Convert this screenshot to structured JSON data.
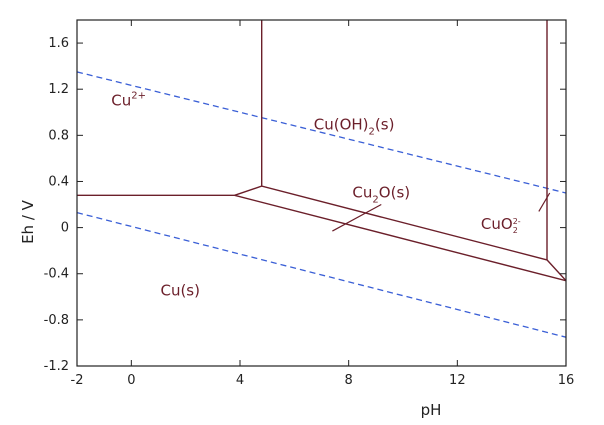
{
  "chart_data": {
    "type": "line",
    "xlabel": "pH",
    "ylabel": "Eh / V",
    "xlim": [
      -2,
      16
    ],
    "ylim": [
      -1.2,
      1.8
    ],
    "xticks": [
      -2,
      0,
      4,
      8,
      12,
      16
    ],
    "yticks": [
      -1.2,
      -0.8,
      -0.4,
      0,
      0.4,
      0.8,
      1.2,
      1.6
    ],
    "grid": false,
    "colors": {
      "boundary": "#6b1f2a",
      "water": "#3a5fd6",
      "axis": "#222222"
    },
    "series": [
      {
        "role": "water-upper-limit",
        "style": "dashed",
        "x": [
          -2,
          16
        ],
        "y": [
          1.35,
          0.3
        ]
      },
      {
        "role": "water-lower-limit",
        "style": "dashed",
        "x": [
          -2,
          16
        ],
        "y": [
          0.13,
          -0.95
        ]
      },
      {
        "role": "boundary",
        "x": [
          -2,
          3.8
        ],
        "y": [
          0.28,
          0.28
        ]
      },
      {
        "role": "boundary",
        "x": [
          3.8,
          4.8,
          15.3
        ],
        "y": [
          0.28,
          0.36,
          -0.28
        ]
      },
      {
        "role": "boundary",
        "x": [
          3.8,
          16
        ],
        "y": [
          0.28,
          -0.46
        ]
      },
      {
        "role": "boundary",
        "x": [
          4.8,
          4.8
        ],
        "y": [
          0.36,
          1.8
        ]
      },
      {
        "role": "boundary",
        "x": [
          15.3,
          15.3
        ],
        "y": [
          -0.28,
          1.8
        ]
      },
      {
        "role": "boundary",
        "x": [
          15.3,
          16
        ],
        "y": [
          -0.28,
          -0.46
        ]
      }
    ],
    "regions": [
      {
        "label": "Cu",
        "sup": "2+",
        "sub": "",
        "tail": "",
        "x": -0.1,
        "y": 1.06
      },
      {
        "label": "Cu(OH)",
        "sup": "",
        "sub": "2",
        "tail": "(s)",
        "x": 8.2,
        "y": 0.85
      },
      {
        "label": "Cu",
        "sup": "",
        "sub": "2",
        "tail": "O(s)",
        "x": 9.2,
        "y": 0.26
      },
      {
        "label": "Cu(s)",
        "sup": "",
        "sub": "",
        "tail": "",
        "x": 1.8,
        "y": -0.59
      }
    ],
    "small_label": {
      "label": "CuO",
      "sup": "2-",
      "sub": "2",
      "x": 13.6,
      "y": -0.01
    },
    "pointers": [
      {
        "from": [
          9.2,
          0.2
        ],
        "to": [
          7.4,
          -0.03
        ]
      },
      {
        "from": [
          15.4,
          0.3
        ],
        "to": [
          15.0,
          0.14
        ]
      }
    ]
  }
}
